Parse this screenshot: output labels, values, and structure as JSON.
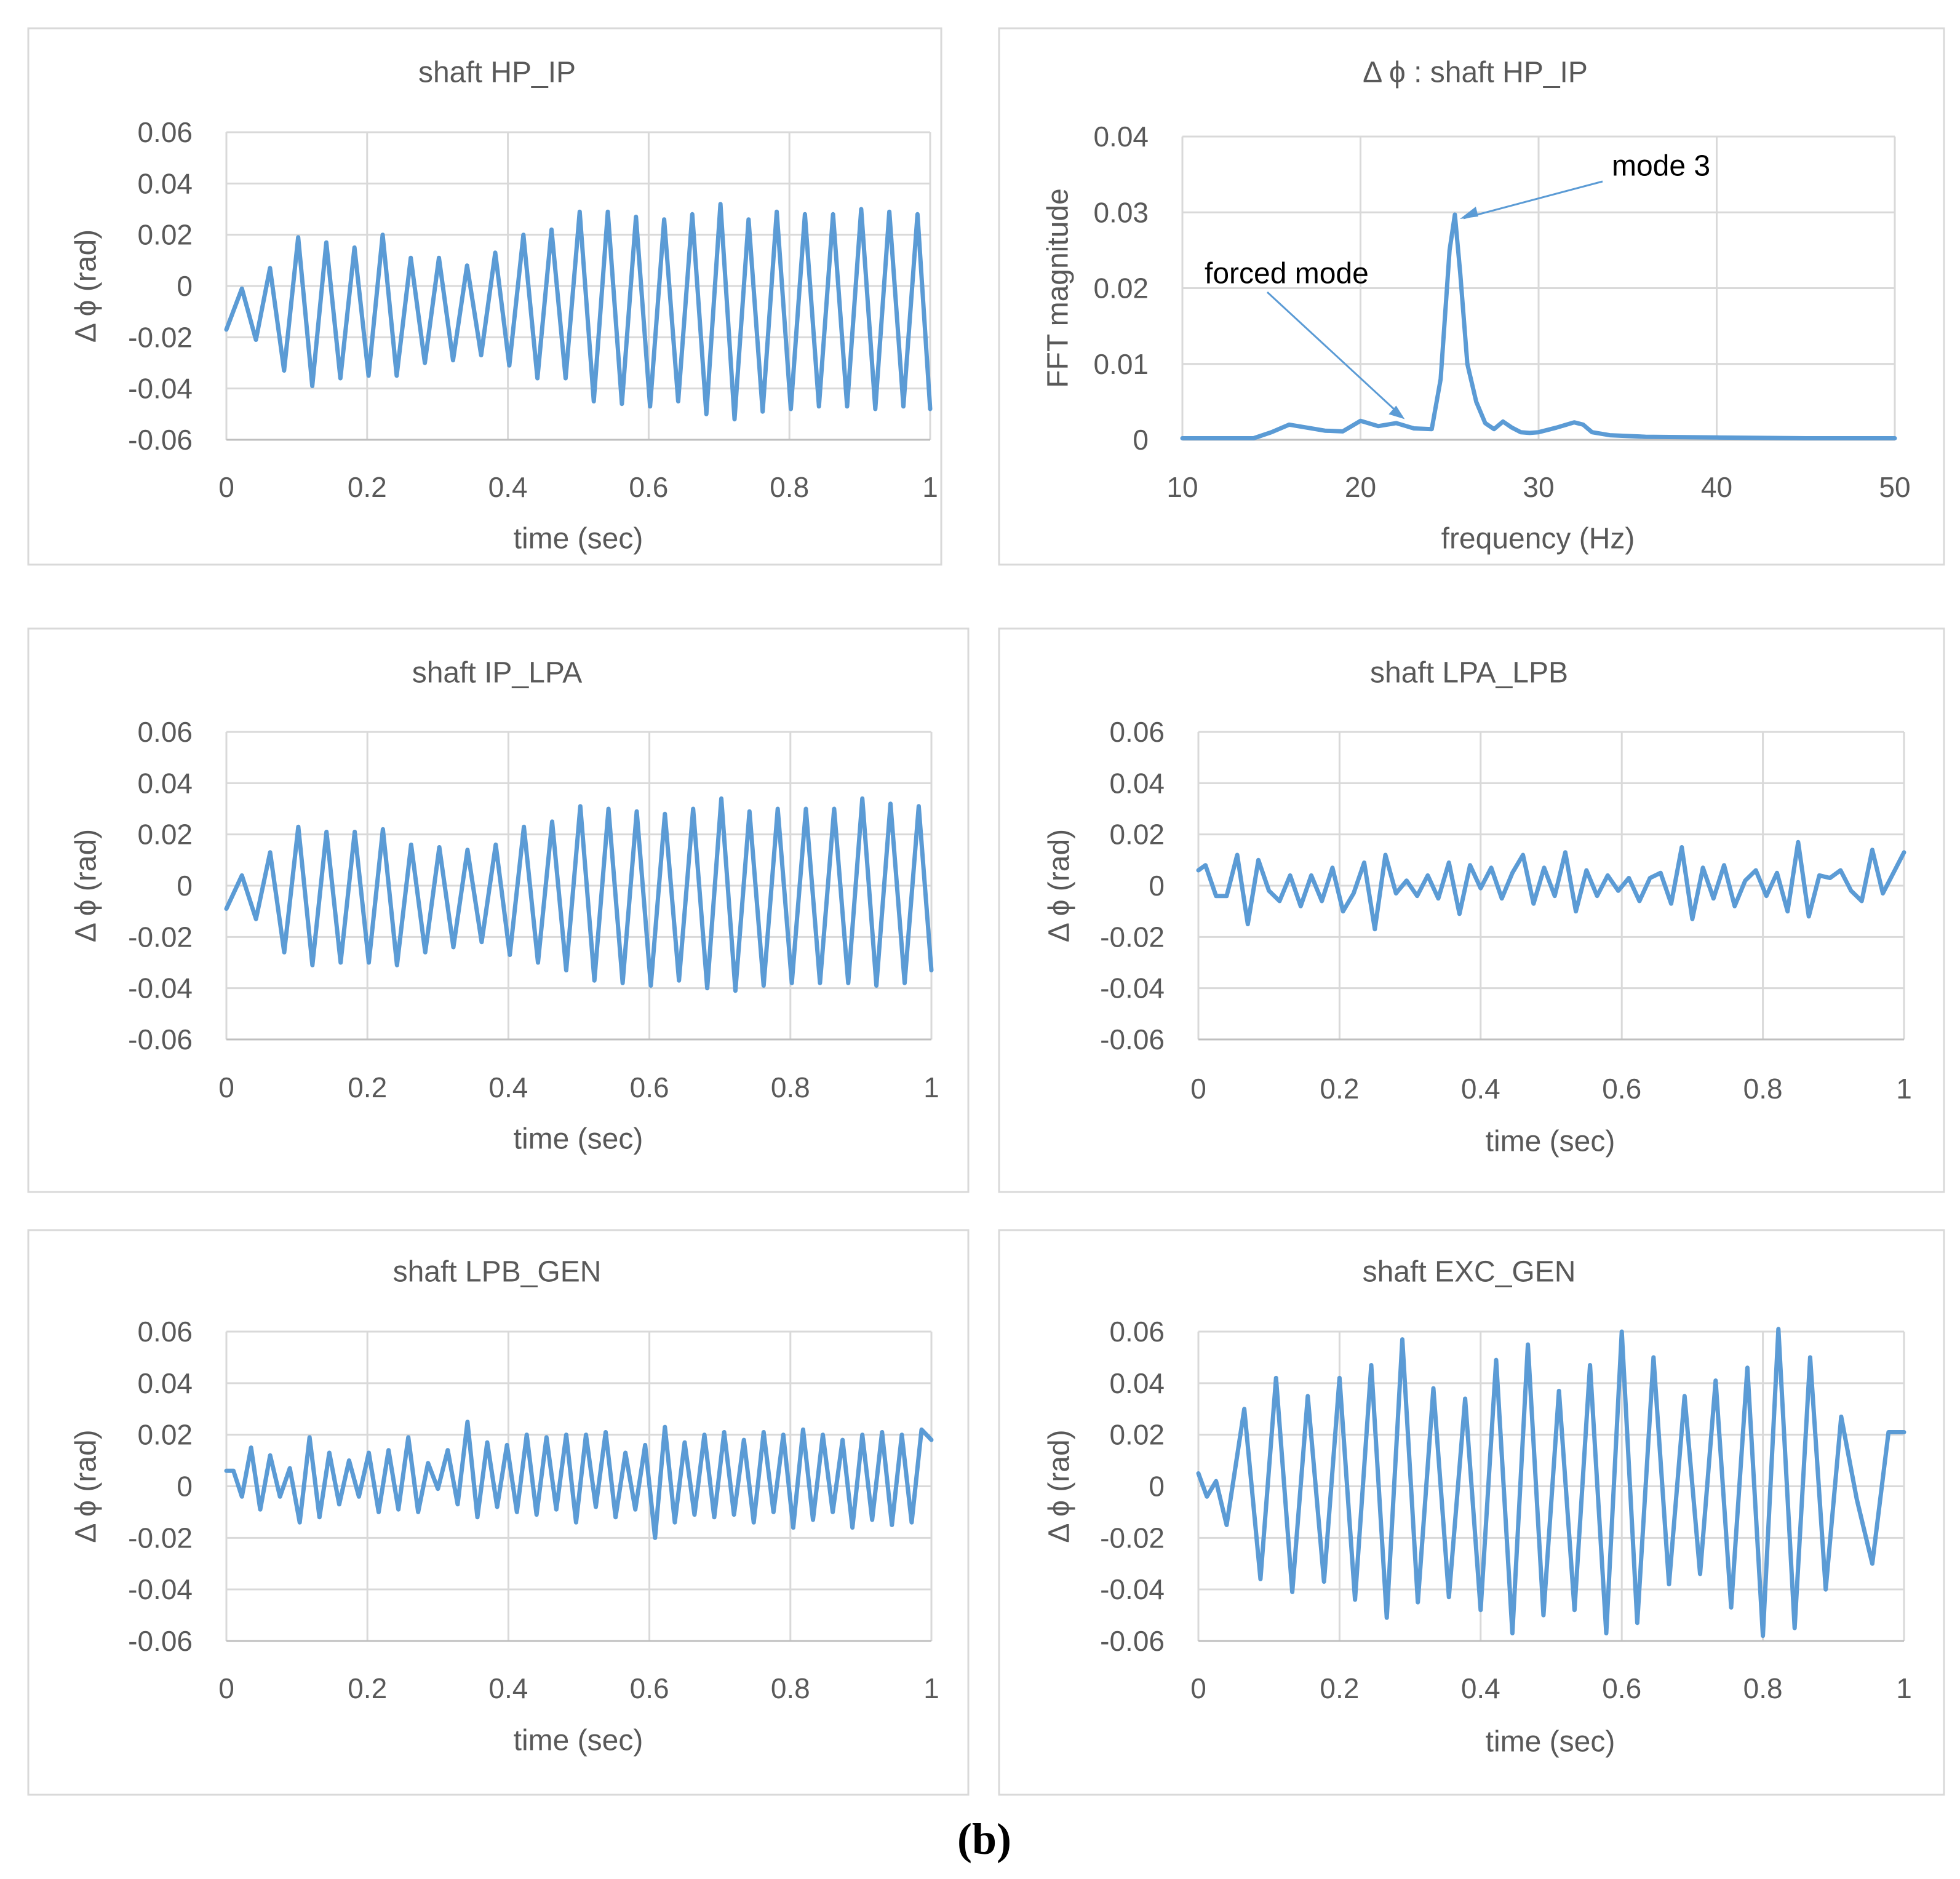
{
  "figure_caption": "(b)",
  "colors": {
    "series": "#5b9bd5",
    "grid": "#d9d9d9",
    "text": "#595959",
    "frame": "#d9d9d9"
  },
  "chart_data": [
    {
      "id": "hp_ip_time",
      "type": "line",
      "title": "shaft HP_IP",
      "xlabel": "time (sec)",
      "ylabel": "Δ ϕ (rad)",
      "xlim": [
        0,
        1
      ],
      "ylim": [
        -0.06,
        0.06
      ],
      "xticks": [
        "0",
        "0.2",
        "0.4",
        "0.6",
        "0.8",
        "1"
      ],
      "yticks": [
        "0.06",
        "0.04",
        "0.02",
        "0",
        "-0.02",
        "-0.04",
        "-0.06"
      ],
      "grid": true,
      "legend": "none",
      "series": [
        {
          "name": "Δϕ HP_IP",
          "x": [
            0,
            0.022,
            0.042,
            0.062,
            0.082,
            0.102,
            0.122,
            0.142,
            0.162,
            0.182,
            0.202,
            0.222,
            0.242,
            0.262,
            0.282,
            0.302,
            0.322,
            0.342,
            0.362,
            0.382,
            0.402,
            0.422,
            0.442,
            0.462,
            0.482,
            0.502,
            0.522,
            0.542,
            0.562,
            0.582,
            0.602,
            0.622,
            0.642,
            0.662,
            0.682,
            0.702,
            0.722,
            0.742,
            0.762,
            0.782,
            0.802,
            0.822,
            0.842,
            0.862,
            0.882,
            0.902,
            0.922,
            0.942,
            0.962,
            0.982,
            1.0
          ],
          "y": [
            -0.017,
            -0.001,
            -0.021,
            0.007,
            -0.033,
            0.019,
            -0.039,
            0.017,
            -0.036,
            0.015,
            -0.035,
            0.02,
            -0.035,
            0.011,
            -0.03,
            0.011,
            -0.029,
            0.008,
            -0.027,
            0.013,
            -0.031,
            0.02,
            -0.036,
            0.022,
            -0.036,
            0.029,
            -0.045,
            0.029,
            -0.046,
            0.027,
            -0.047,
            0.026,
            -0.045,
            0.028,
            -0.05,
            0.032,
            -0.052,
            0.026,
            -0.049,
            0.029,
            -0.048,
            0.028,
            -0.047,
            0.028,
            -0.047,
            0.03,
            -0.048,
            0.029,
            -0.047,
            0.028,
            -0.048
          ]
        }
      ]
    },
    {
      "id": "hp_ip_fft",
      "type": "line",
      "title": "Δ ϕ : shaft HP_IP",
      "xlabel": "frequency (Hz)",
      "ylabel": "FFT magnitude",
      "xlim": [
        10,
        50
      ],
      "ylim": [
        0,
        0.04
      ],
      "xticks": [
        "10",
        "20",
        "30",
        "40",
        "50"
      ],
      "yticks": [
        "0.04",
        "0.03",
        "0.02",
        "0.01",
        "0"
      ],
      "grid": true,
      "legend": "none",
      "annotations": [
        {
          "text": "mode 3",
          "x": 25.3,
          "y": 0.0297
        },
        {
          "text": "forced mode",
          "x": 22.0,
          "y": 0.0045
        }
      ],
      "series": [
        {
          "name": "FFT HP_IP",
          "x": [
            10,
            12,
            14,
            15,
            16,
            17,
            18,
            19,
            20,
            21,
            22,
            23,
            24,
            24.5,
            25,
            25.3,
            25.6,
            26,
            26.5,
            27,
            27.5,
            28,
            28.5,
            29,
            29.5,
            30,
            31,
            32,
            32.5,
            33,
            34,
            36,
            40,
            45,
            50
          ],
          "y": [
            0.0002,
            0.0002,
            0.0002,
            0.001,
            0.002,
            0.0016,
            0.0012,
            0.0011,
            0.0025,
            0.0018,
            0.0022,
            0.0015,
            0.0014,
            0.008,
            0.025,
            0.0297,
            0.022,
            0.01,
            0.005,
            0.0022,
            0.0014,
            0.0024,
            0.0016,
            0.001,
            0.0009,
            0.001,
            0.0016,
            0.0023,
            0.002,
            0.001,
            0.0006,
            0.0004,
            0.0003,
            0.0002,
            0.0002
          ]
        }
      ]
    },
    {
      "id": "ip_lpa_time",
      "type": "line",
      "title": "shaft IP_LPA",
      "xlabel": "time (sec)",
      "ylabel": "Δ ϕ (rad)",
      "xlim": [
        0,
        1
      ],
      "ylim": [
        -0.06,
        0.06
      ],
      "xticks": [
        "0",
        "0.2",
        "0.4",
        "0.6",
        "0.8",
        "1"
      ],
      "yticks": [
        "0.06",
        "0.04",
        "0.02",
        "0",
        "-0.02",
        "-0.04",
        "-0.06"
      ],
      "grid": true,
      "legend": "none",
      "series": [
        {
          "name": "Δϕ IP_LPA",
          "x": [
            0,
            0.022,
            0.042,
            0.062,
            0.082,
            0.102,
            0.122,
            0.142,
            0.162,
            0.182,
            0.202,
            0.222,
            0.242,
            0.262,
            0.282,
            0.302,
            0.322,
            0.342,
            0.362,
            0.382,
            0.402,
            0.422,
            0.442,
            0.462,
            0.482,
            0.502,
            0.522,
            0.542,
            0.562,
            0.582,
            0.602,
            0.622,
            0.642,
            0.662,
            0.682,
            0.702,
            0.722,
            0.742,
            0.762,
            0.782,
            0.802,
            0.822,
            0.842,
            0.862,
            0.882,
            0.902,
            0.922,
            0.942,
            0.962,
            0.982,
            1.0
          ],
          "y": [
            -0.009,
            0.004,
            -0.013,
            0.013,
            -0.026,
            0.023,
            -0.031,
            0.021,
            -0.03,
            0.021,
            -0.03,
            0.022,
            -0.031,
            0.016,
            -0.026,
            0.015,
            -0.024,
            0.014,
            -0.022,
            0.016,
            -0.027,
            0.023,
            -0.03,
            0.025,
            -0.033,
            0.031,
            -0.037,
            0.03,
            -0.038,
            0.029,
            -0.039,
            0.028,
            -0.037,
            0.03,
            -0.04,
            0.034,
            -0.041,
            0.029,
            -0.039,
            0.03,
            -0.038,
            0.03,
            -0.038,
            0.03,
            -0.038,
            0.034,
            -0.039,
            0.032,
            -0.038,
            0.031,
            -0.033
          ]
        }
      ]
    },
    {
      "id": "lpa_lpb_time",
      "type": "line",
      "title": "shaft LPA_LPB",
      "xlabel": "time (sec)",
      "ylabel": "Δ ϕ (rad)",
      "xlim": [
        0,
        1
      ],
      "ylim": [
        -0.06,
        0.06
      ],
      "xticks": [
        "0",
        "0.2",
        "0.4",
        "0.6",
        "0.8",
        "1"
      ],
      "yticks": [
        "0.06",
        "0.04",
        "0.02",
        "0",
        "-0.02",
        "-0.04",
        "-0.06"
      ],
      "grid": true,
      "legend": "none",
      "series": [
        {
          "name": "Δϕ LPA_LPB",
          "x": [
            0,
            0.01,
            0.025,
            0.04,
            0.055,
            0.07,
            0.085,
            0.1,
            0.115,
            0.13,
            0.145,
            0.16,
            0.175,
            0.19,
            0.205,
            0.22,
            0.235,
            0.25,
            0.265,
            0.28,
            0.295,
            0.31,
            0.325,
            0.34,
            0.355,
            0.37,
            0.385,
            0.4,
            0.415,
            0.43,
            0.445,
            0.46,
            0.475,
            0.49,
            0.505,
            0.52,
            0.535,
            0.55,
            0.565,
            0.58,
            0.595,
            0.61,
            0.625,
            0.64,
            0.655,
            0.67,
            0.685,
            0.7,
            0.715,
            0.73,
            0.745,
            0.76,
            0.775,
            0.79,
            0.805,
            0.82,
            0.835,
            0.85,
            0.865,
            0.88,
            0.895,
            0.91,
            0.925,
            0.94,
            0.955,
            0.97,
            0.985,
            1.0
          ],
          "y": [
            0.006,
            0.008,
            -0.004,
            -0.004,
            0.012,
            -0.015,
            0.01,
            -0.002,
            -0.006,
            0.004,
            -0.008,
            0.004,
            -0.006,
            0.007,
            -0.01,
            -0.003,
            0.009,
            -0.017,
            0.012,
            -0.003,
            0.002,
            -0.004,
            0.004,
            -0.005,
            0.009,
            -0.011,
            0.008,
            -0.001,
            0.007,
            -0.005,
            0.005,
            0.012,
            -0.007,
            0.007,
            -0.004,
            0.013,
            -0.01,
            0.006,
            -0.004,
            0.004,
            -0.002,
            0.003,
            -0.006,
            0.003,
            0.005,
            -0.007,
            0.015,
            -0.013,
            0.007,
            -0.005,
            0.008,
            -0.008,
            0.002,
            0.006,
            -0.004,
            0.005,
            -0.01,
            0.017,
            -0.012,
            0.004,
            0.003,
            0.006,
            -0.002,
            -0.006,
            0.014,
            -0.003,
            0.005,
            0.013
          ]
        }
      ]
    },
    {
      "id": "lpb_gen_time",
      "type": "line",
      "title": "shaft LPB_GEN",
      "xlabel": "time (sec)",
      "ylabel": "Δ ϕ (rad)",
      "xlim": [
        0,
        1
      ],
      "ylim": [
        -0.06,
        0.06
      ],
      "xticks": [
        "0",
        "0.2",
        "0.4",
        "0.6",
        "0.8",
        "1"
      ],
      "yticks": [
        "0.06",
        "0.04",
        "0.02",
        "0",
        "-0.02",
        "-0.04",
        "-0.06"
      ],
      "grid": true,
      "legend": "none",
      "series": [
        {
          "name": "Δϕ LPB_GEN",
          "x": [
            0,
            0.01,
            0.022,
            0.035,
            0.048,
            0.062,
            0.076,
            0.09,
            0.104,
            0.118,
            0.132,
            0.146,
            0.16,
            0.174,
            0.188,
            0.202,
            0.216,
            0.23,
            0.244,
            0.258,
            0.272,
            0.286,
            0.3,
            0.314,
            0.328,
            0.342,
            0.356,
            0.37,
            0.384,
            0.398,
            0.412,
            0.426,
            0.44,
            0.454,
            0.468,
            0.482,
            0.496,
            0.51,
            0.524,
            0.538,
            0.552,
            0.566,
            0.58,
            0.594,
            0.608,
            0.622,
            0.636,
            0.65,
            0.664,
            0.678,
            0.692,
            0.706,
            0.72,
            0.734,
            0.748,
            0.762,
            0.776,
            0.79,
            0.804,
            0.818,
            0.832,
            0.846,
            0.86,
            0.874,
            0.888,
            0.902,
            0.916,
            0.93,
            0.944,
            0.958,
            0.972,
            0.986,
            1.0
          ],
          "y": [
            0.006,
            0.006,
            -0.004,
            0.015,
            -0.009,
            0.012,
            -0.004,
            0.007,
            -0.014,
            0.019,
            -0.012,
            0.013,
            -0.007,
            0.01,
            -0.004,
            0.013,
            -0.01,
            0.014,
            -0.009,
            0.019,
            -0.01,
            0.009,
            -0.001,
            0.014,
            -0.007,
            0.025,
            -0.012,
            0.017,
            -0.008,
            0.016,
            -0.01,
            0.02,
            -0.011,
            0.019,
            -0.009,
            0.02,
            -0.014,
            0.02,
            -0.008,
            0.021,
            -0.012,
            0.013,
            -0.009,
            0.016,
            -0.02,
            0.023,
            -0.014,
            0.017,
            -0.011,
            0.02,
            -0.012,
            0.021,
            -0.011,
            0.018,
            -0.014,
            0.021,
            -0.01,
            0.02,
            -0.016,
            0.022,
            -0.013,
            0.02,
            -0.01,
            0.018,
            -0.016,
            0.02,
            -0.013,
            0.021,
            -0.015,
            0.02,
            -0.014,
            0.022,
            0.018
          ]
        }
      ]
    },
    {
      "id": "exc_gen_time",
      "type": "line",
      "title": "shaft EXC_GEN",
      "xlabel": "time (sec)",
      "ylabel": "Δ ϕ (rad)",
      "xlim": [
        0,
        1
      ],
      "ylim": [
        -0.06,
        0.06
      ],
      "xticks": [
        "0",
        "0.2",
        "0.4",
        "0.6",
        "0.8",
        "1"
      ],
      "yticks": [
        "0.06",
        "0.04",
        "0.02",
        "0",
        "-0.02",
        "-0.04",
        "-0.06"
      ],
      "grid": true,
      "legend": "none",
      "series": [
        {
          "name": "Δϕ EXC_GEN",
          "x": [
            0,
            0.012,
            0.025,
            0.04,
            0.065,
            0.088,
            0.11,
            0.133,
            0.155,
            0.178,
            0.2,
            0.222,
            0.245,
            0.267,
            0.289,
            0.311,
            0.333,
            0.355,
            0.378,
            0.4,
            0.422,
            0.445,
            0.467,
            0.489,
            0.511,
            0.533,
            0.555,
            0.578,
            0.6,
            0.622,
            0.645,
            0.667,
            0.689,
            0.711,
            0.733,
            0.755,
            0.778,
            0.8,
            0.822,
            0.845,
            0.867,
            0.889,
            0.911,
            0.933,
            0.955,
            0.978,
            1.0
          ],
          "y": [
            0.005,
            -0.004,
            0.002,
            -0.015,
            0.03,
            -0.036,
            0.042,
            -0.041,
            0.035,
            -0.037,
            0.042,
            -0.044,
            0.047,
            -0.051,
            0.057,
            -0.045,
            0.038,
            -0.043,
            0.034,
            -0.048,
            0.049,
            -0.057,
            0.055,
            -0.05,
            0.037,
            -0.048,
            0.047,
            -0.057,
            0.06,
            -0.053,
            0.05,
            -0.038,
            0.035,
            -0.034,
            0.041,
            -0.047,
            0.046,
            -0.058,
            0.061,
            -0.055,
            0.05,
            -0.04,
            0.027,
            -0.005,
            -0.03,
            0.021,
            0.021
          ]
        }
      ]
    }
  ]
}
